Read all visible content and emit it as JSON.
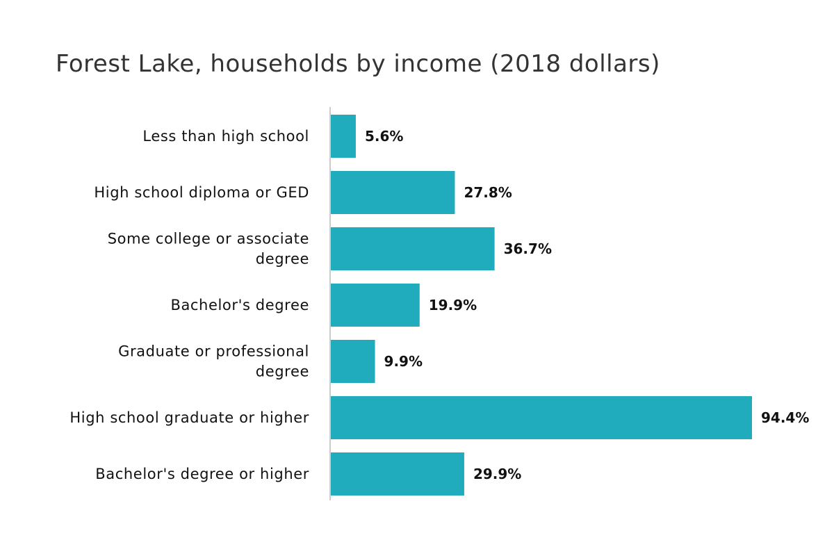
{
  "title": "Forest Lake, households by income (2018 dollars)",
  "colors": {
    "bar": "#20acbc",
    "axis": "#cccccc",
    "text": "#111111",
    "title": "#333333"
  },
  "chart_data": {
    "type": "bar",
    "orientation": "horizontal",
    "title": "Forest Lake, households by income (2018 dollars)",
    "categories": [
      [
        "Less than high school"
      ],
      [
        "High school diploma or GED"
      ],
      [
        "Some college or associate",
        "degree"
      ],
      [
        "Bachelor's degree"
      ],
      [
        "Graduate or professional",
        "degree"
      ],
      [
        "High school graduate or higher"
      ],
      [
        "Bachelor's degree or higher"
      ]
    ],
    "values": [
      5.6,
      27.8,
      36.7,
      19.9,
      9.9,
      94.4,
      29.9
    ],
    "value_labels": [
      "5.6%",
      "27.8%",
      "36.7%",
      "19.9%",
      "9.9%",
      "94.4%",
      "29.9%"
    ],
    "xlim": [
      0,
      94.4
    ],
    "grid": false,
    "legend": "none"
  }
}
